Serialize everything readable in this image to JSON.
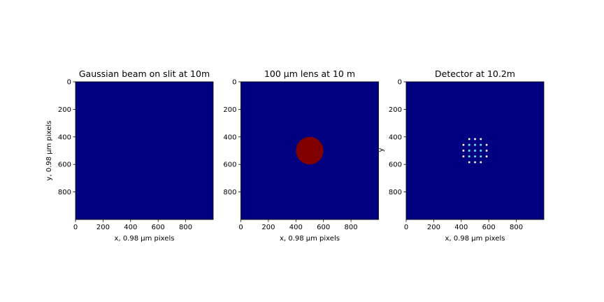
{
  "colors": {
    "background": "#000080",
    "lens": "#800000",
    "spot": "#66ffff",
    "spot_edge": "#ffffff"
  },
  "chart_data": [
    {
      "type": "heatmap",
      "title": "Gaussian beam on slit at 10m",
      "xlabel": "x, 0.98 μm pixels",
      "ylabel": "y, 0.98 μm pixels",
      "xlim": [
        0,
        1000
      ],
      "ylim": [
        1000,
        0
      ],
      "xticks": [
        "0",
        "200",
        "400",
        "600",
        "800"
      ],
      "yticks": [
        "0",
        "200",
        "400",
        "600",
        "800"
      ],
      "features": []
    },
    {
      "type": "heatmap",
      "title": "100 μm lens at 10 m",
      "xlabel": "x, 0.98 μm pixels",
      "ylabel": "",
      "xlim": [
        0,
        1000
      ],
      "ylim": [
        1000,
        0
      ],
      "xticks": [
        "0",
        "200",
        "400",
        "600",
        "800"
      ],
      "yticks": [
        "0",
        "200",
        "400",
        "600",
        "800"
      ],
      "features": [
        {
          "kind": "disk",
          "cx": 500,
          "cy": 500,
          "r": 100
        }
      ]
    },
    {
      "type": "heatmap",
      "title": "Detector at 10.2m",
      "xlabel": "x, 0.98 μm pixels",
      "ylabel": "y",
      "xlim": [
        0,
        1000
      ],
      "ylim": [
        1000,
        0
      ],
      "xticks": [
        "0",
        "200",
        "400",
        "600",
        "800"
      ],
      "yticks": [
        "0",
        "200",
        "400",
        "600",
        "800"
      ],
      "features": [
        {
          "kind": "spot-grid",
          "cx": 500,
          "cy": 500,
          "r": 95,
          "pitch": 42
        }
      ]
    }
  ]
}
